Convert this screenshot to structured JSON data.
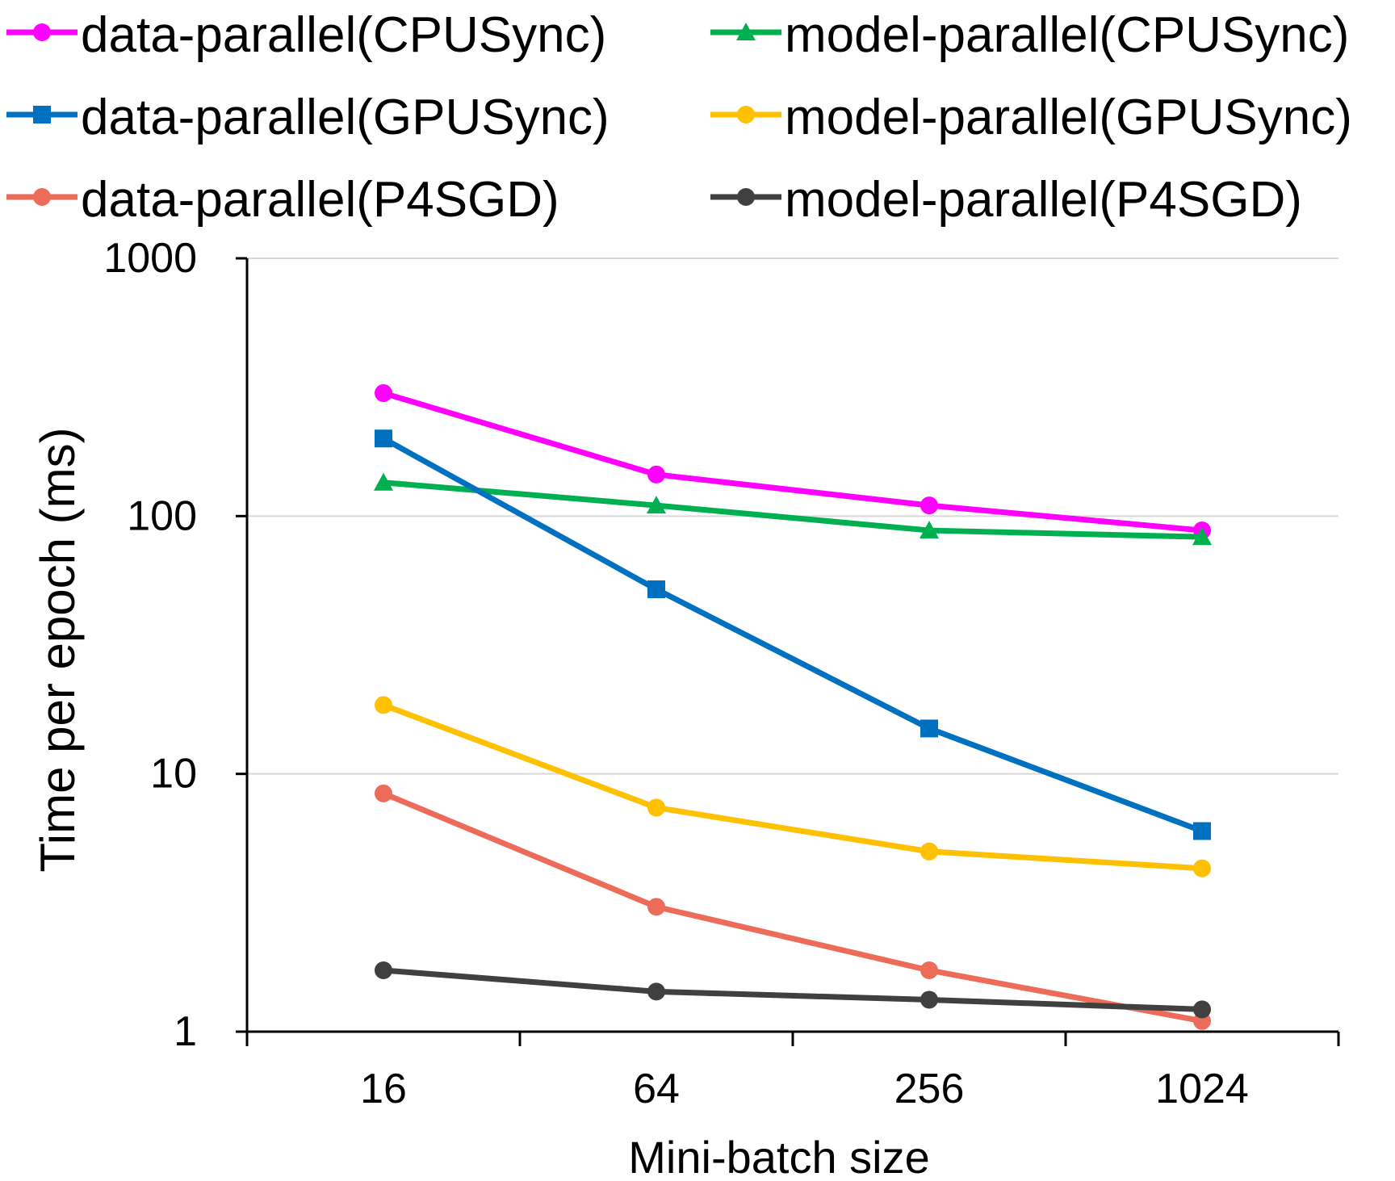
{
  "chart_data": {
    "type": "line",
    "title": "",
    "xlabel": "Mini-batch size",
    "ylabel": "Time per epoch (ms)",
    "yscale": "log",
    "ylim": [
      1,
      1000
    ],
    "yticks": [
      "1",
      "10",
      "100",
      "1000"
    ],
    "categories": [
      "16",
      "64",
      "256",
      "1024"
    ],
    "grid": true,
    "legend_position": "top",
    "series": [
      {
        "name": "data-parallel(CPUSync)",
        "color": "#ff00ff",
        "marker": "circle",
        "values": [
          300,
          145,
          110,
          88
        ]
      },
      {
        "name": "model-parallel(CPUSync)",
        "color": "#00b050",
        "marker": "triangle",
        "values": [
          135,
          110,
          88,
          83
        ]
      },
      {
        "name": "data-parallel(GPUSync)",
        "color": "#0070c0",
        "marker": "square",
        "values": [
          200,
          52,
          15,
          6
        ]
      },
      {
        "name": "model-parallel(GPUSync)",
        "color": "#ffc000",
        "marker": "circle",
        "values": [
          18.5,
          7.4,
          5,
          4.3
        ]
      },
      {
        "name": "data-parallel(P4SGD)",
        "color": "#ed6c59",
        "marker": "circle",
        "values": [
          8.4,
          3.05,
          1.73,
          1.1
        ]
      },
      {
        "name": "model-parallel(P4SGD)",
        "color": "#404040",
        "marker": "circle",
        "values": [
          1.73,
          1.43,
          1.33,
          1.22
        ]
      }
    ]
  }
}
